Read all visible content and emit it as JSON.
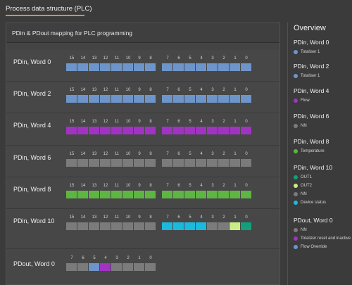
{
  "tab": {
    "label": "Process data structure (PLC)"
  },
  "panel": {
    "title": "PDin & PDout mapping for PLC programming"
  },
  "colors": {
    "blue": "#6e95c9",
    "purple": "#a033c2",
    "grey": "#7b7b7b",
    "green": "#5fb543",
    "cyan": "#1cb9de",
    "teal": "#12a07a",
    "lime": "#c9ec86",
    "accent": "#e8921c"
  },
  "rows": [
    {
      "label": "PDin, Word 0",
      "high": {
        "bits": [
          "15",
          "14",
          "13",
          "12",
          "11",
          "10",
          "9",
          "8"
        ],
        "cells": [
          "blue",
          "blue",
          "blue",
          "blue",
          "blue",
          "blue",
          "blue",
          "blue"
        ]
      },
      "low": {
        "bits": [
          "7",
          "6",
          "5",
          "4",
          "3",
          "2",
          "1",
          "0"
        ],
        "cells": [
          "blue",
          "blue",
          "blue",
          "blue",
          "blue",
          "blue",
          "blue",
          "blue"
        ]
      }
    },
    {
      "label": "PDin, Word 2",
      "high": {
        "bits": [
          "15",
          "14",
          "13",
          "12",
          "11",
          "10",
          "9",
          "8"
        ],
        "cells": [
          "blue",
          "blue",
          "blue",
          "blue",
          "blue",
          "blue",
          "blue",
          "blue"
        ]
      },
      "low": {
        "bits": [
          "7",
          "6",
          "5",
          "4",
          "3",
          "2",
          "1",
          "0"
        ],
        "cells": [
          "blue",
          "blue",
          "blue",
          "blue",
          "blue",
          "blue",
          "blue",
          "blue"
        ]
      }
    },
    {
      "label": "PDin, Word 4",
      "high": {
        "bits": [
          "15",
          "14",
          "13",
          "12",
          "11",
          "10",
          "9",
          "8"
        ],
        "cells": [
          "purple",
          "purple",
          "purple",
          "purple",
          "purple",
          "purple",
          "purple",
          "purple"
        ]
      },
      "low": {
        "bits": [
          "7",
          "6",
          "5",
          "4",
          "3",
          "2",
          "1",
          "0"
        ],
        "cells": [
          "purple",
          "purple",
          "purple",
          "purple",
          "purple",
          "purple",
          "purple",
          "purple"
        ]
      }
    },
    {
      "label": "PDin, Word 6",
      "high": {
        "bits": [
          "15",
          "14",
          "13",
          "12",
          "11",
          "10",
          "9",
          "8"
        ],
        "cells": [
          "grey",
          "grey",
          "grey",
          "grey",
          "grey",
          "grey",
          "grey",
          "grey"
        ]
      },
      "low": {
        "bits": [
          "7",
          "6",
          "5",
          "4",
          "3",
          "2",
          "1",
          "0"
        ],
        "cells": [
          "grey",
          "grey",
          "grey",
          "grey",
          "grey",
          "grey",
          "grey",
          "grey"
        ]
      }
    },
    {
      "label": "PDin, Word 8",
      "high": {
        "bits": [
          "15",
          "14",
          "13",
          "12",
          "11",
          "10",
          "9",
          "8"
        ],
        "cells": [
          "green",
          "green",
          "green",
          "green",
          "green",
          "green",
          "green",
          "green"
        ]
      },
      "low": {
        "bits": [
          "7",
          "6",
          "5",
          "4",
          "3",
          "2",
          "1",
          "0"
        ],
        "cells": [
          "green",
          "green",
          "green",
          "green",
          "green",
          "green",
          "green",
          "green"
        ]
      }
    },
    {
      "label": "PDin, Word 10",
      "high": {
        "bits": [
          "15",
          "14",
          "13",
          "12",
          "11",
          "10",
          "9",
          "8"
        ],
        "cells": [
          "grey",
          "grey",
          "grey",
          "grey",
          "grey",
          "grey",
          "grey",
          "grey"
        ]
      },
      "low": {
        "bits": [
          "7",
          "6",
          "5",
          "4",
          "3",
          "2",
          "1",
          "0"
        ],
        "cells": [
          "cyan",
          "cyan",
          "cyan",
          "cyan",
          "grey",
          "grey",
          "lime",
          "teal"
        ]
      }
    },
    {
      "label": "PDout, Word 0",
      "low": {
        "bits": [
          "7",
          "6",
          "5",
          "4",
          "3",
          "2",
          "1",
          "0"
        ],
        "cells": [
          "grey",
          "grey",
          "blue",
          "purple",
          "grey",
          "grey",
          "grey",
          "grey"
        ]
      }
    }
  ],
  "overview": {
    "title": "Overview",
    "groups": [
      {
        "head": "PDin, Word 0",
        "items": [
          {
            "color": "blue",
            "text": "Totaliser 1"
          }
        ]
      },
      {
        "head": "PDin, Word 2",
        "items": [
          {
            "color": "blue",
            "text": "Totaliser 1"
          }
        ]
      },
      {
        "head": "PDin, Word 4",
        "items": [
          {
            "color": "purple",
            "text": "Flow"
          }
        ]
      },
      {
        "head": "PDin, Word 6",
        "items": [
          {
            "color": "grey",
            "text": "NN"
          }
        ]
      },
      {
        "head": "PDin, Word 8",
        "items": [
          {
            "color": "green",
            "text": "Temperature"
          }
        ]
      },
      {
        "head": "PDin, Word 10",
        "items": [
          {
            "color": "teal",
            "text": "OUT1"
          },
          {
            "color": "lime",
            "text": "OUT2"
          },
          {
            "color": "grey",
            "text": "NN"
          },
          {
            "color": "cyan",
            "text": "Device status"
          }
        ]
      },
      {
        "head": "PDout, Word 0",
        "items": [
          {
            "color": "grey",
            "text": "NN"
          },
          {
            "color": "purple",
            "text": "Totalizer reset and inactive"
          },
          {
            "color": "blue",
            "text": "Flow Override"
          }
        ]
      }
    ]
  }
}
